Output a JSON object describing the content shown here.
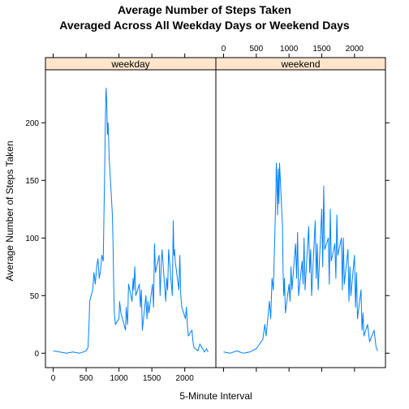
{
  "chart_data": {
    "type": "line",
    "title_lines": [
      "Average Number of Steps Taken",
      "Averaged Across All Weekday Days or Weekend Days"
    ],
    "xlabel": "5-Minute Interval",
    "ylabel": "Average Number of Steps Taken",
    "xlim": [
      -118,
      2473
    ],
    "ylim": [
      -12.5,
      246
    ],
    "x_ticks": [
      0,
      500,
      1000,
      1500,
      2000
    ],
    "y_ticks": [
      0,
      50,
      100,
      150,
      200
    ],
    "line_color": "#0080ff",
    "strip_color": "#ffe5cc",
    "panels": [
      {
        "name": "weekday",
        "x": [
          0,
          100,
          200,
          300,
          400,
          500,
          530,
          545,
          555,
          600,
          620,
          640,
          660,
          680,
          700,
          720,
          740,
          760,
          780,
          800,
          805,
          815,
          825,
          835,
          845,
          850,
          855,
          900,
          910,
          920,
          930,
          945,
          1000,
          1010,
          1030,
          1100,
          1110,
          1130,
          1145,
          1200,
          1215,
          1225,
          1240,
          1255,
          1310,
          1325,
          1340,
          1355,
          1410,
          1425,
          1440,
          1455,
          1510,
          1525,
          1540,
          1555,
          1610,
          1625,
          1640,
          1655,
          1710,
          1725,
          1740,
          1755,
          1810,
          1825,
          1835,
          1845,
          1855,
          1910,
          1925,
          1940,
          1955,
          2010,
          2025,
          2040,
          2055,
          2110,
          2125,
          2140,
          2200,
          2230,
          2300,
          2330,
          2355
        ],
        "y": [
          2,
          1,
          0,
          1,
          0,
          2,
          5,
          25,
          45,
          55,
          70,
          60,
          75,
          82,
          65,
          72,
          85,
          80,
          150,
          225,
          230,
          215,
          190,
          200,
          180,
          170,
          165,
          120,
          95,
          60,
          35,
          25,
          30,
          45,
          35,
          20,
          40,
          25,
          60,
          45,
          65,
          55,
          75,
          50,
          60,
          40,
          55,
          20,
          50,
          30,
          45,
          35,
          60,
          40,
          95,
          70,
          85,
          50,
          75,
          90,
          45,
          65,
          55,
          90,
          50,
          115,
          85,
          90,
          80,
          55,
          85,
          50,
          40,
          30,
          40,
          25,
          15,
          20,
          10,
          5,
          2,
          8,
          1,
          4,
          1
        ]
      },
      {
        "name": "weekend",
        "x": [
          0,
          100,
          200,
          300,
          400,
          500,
          550,
          600,
          630,
          650,
          700,
          720,
          740,
          760,
          780,
          800,
          805,
          815,
          825,
          835,
          845,
          855,
          900,
          910,
          920,
          930,
          945,
          1000,
          1015,
          1030,
          1045,
          1100,
          1115,
          1130,
          1145,
          1200,
          1215,
          1230,
          1245,
          1300,
          1315,
          1330,
          1345,
          1400,
          1415,
          1430,
          1445,
          1500,
          1515,
          1530,
          1545,
          1600,
          1615,
          1630,
          1645,
          1700,
          1715,
          1730,
          1745,
          1800,
          1815,
          1830,
          1845,
          1900,
          1915,
          1930,
          1945,
          2000,
          2015,
          2030,
          2045,
          2100,
          2115,
          2130,
          2145,
          2200,
          2230,
          2300,
          2330,
          2355
        ],
        "y": [
          1,
          0,
          2,
          0,
          1,
          4,
          8,
          12,
          25,
          15,
          45,
          30,
          65,
          55,
          95,
          140,
          165,
          150,
          120,
          160,
          130,
          165,
          110,
          70,
          50,
          65,
          35,
          60,
          45,
          75,
          55,
          95,
          65,
          105,
          50,
          80,
          60,
          100,
          55,
          110,
          70,
          90,
          50,
          115,
          65,
          95,
          55,
          125,
          75,
          145,
          90,
          100,
          60,
          125,
          80,
          95,
          65,
          120,
          85,
          100,
          55,
          100,
          60,
          90,
          45,
          75,
          50,
          85,
          40,
          70,
          30,
          55,
          20,
          35,
          15,
          25,
          10,
          20,
          5,
          2
        ]
      }
    ]
  }
}
